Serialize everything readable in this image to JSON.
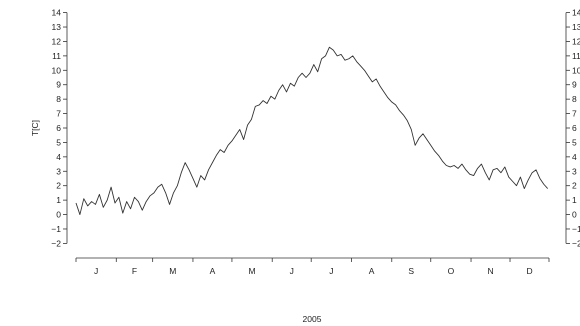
{
  "chart_data": {
    "type": "line",
    "title": "",
    "xlabel": "2005",
    "ylabel": "T[C]",
    "ylim": [
      -2,
      14
    ],
    "y_ticks": [
      -2,
      -1,
      0,
      1,
      2,
      3,
      4,
      5,
      6,
      7,
      8,
      9,
      10,
      11,
      12,
      13,
      14
    ],
    "x_tick_labels": [
      "J",
      "F",
      "M",
      "A",
      "M",
      "J",
      "J",
      "A",
      "S",
      "O",
      "N",
      "D"
    ],
    "grid": false,
    "series": [
      {
        "x": [
          1,
          4,
          7,
          10,
          13,
          16,
          19,
          22,
          25,
          28,
          31,
          34,
          37,
          40,
          43,
          46,
          49,
          52,
          55,
          58,
          61,
          64,
          67,
          70,
          73,
          76,
          79,
          82,
          85,
          88,
          91,
          94,
          97,
          100,
          103,
          106,
          109,
          112,
          115,
          118,
          121,
          124,
          127,
          130,
          133,
          136,
          139,
          142,
          145,
          148,
          151,
          154,
          157,
          160,
          163,
          166,
          169,
          172,
          175,
          178,
          181,
          184,
          187,
          190,
          193,
          196,
          199,
          202,
          205,
          208,
          211,
          214,
          217,
          220,
          223,
          226,
          229,
          232,
          235,
          238,
          241,
          244,
          247,
          250,
          253,
          256,
          259,
          262,
          265,
          268,
          271,
          274,
          277,
          280,
          283,
          286,
          289,
          292,
          295,
          298,
          301,
          304,
          307,
          310,
          313,
          316,
          319,
          322,
          325,
          328,
          331,
          334,
          337,
          340,
          343,
          346,
          349,
          352,
          355,
          358,
          361,
          364
        ],
        "y": [
          0.8,
          0.0,
          1.1,
          0.6,
          0.9,
          0.7,
          1.4,
          0.5,
          1.0,
          1.9,
          0.8,
          1.2,
          0.1,
          0.9,
          0.4,
          1.2,
          0.9,
          0.3,
          0.9,
          1.3,
          1.5,
          1.9,
          2.1,
          1.5,
          0.7,
          1.5,
          2.0,
          2.9,
          3.6,
          3.1,
          2.5,
          1.9,
          2.7,
          2.4,
          3.1,
          3.6,
          4.1,
          4.5,
          4.3,
          4.8,
          5.1,
          5.5,
          5.9,
          5.2,
          6.2,
          6.6,
          7.5,
          7.6,
          7.9,
          7.7,
          8.2,
          8.0,
          8.6,
          9.0,
          8.5,
          9.1,
          8.9,
          9.5,
          9.8,
          9.5,
          9.8,
          10.4,
          9.9,
          10.8,
          11.0,
          11.6,
          11.4,
          11.0,
          11.1,
          10.7,
          10.8,
          11.0,
          10.6,
          10.3,
          10.0,
          9.6,
          9.2,
          9.4,
          8.9,
          8.5,
          8.1,
          7.8,
          7.6,
          7.2,
          6.9,
          6.5,
          5.9,
          4.8,
          5.3,
          5.6,
          5.2,
          4.8,
          4.4,
          4.1,
          3.7,
          3.4,
          3.3,
          3.4,
          3.2,
          3.5,
          3.1,
          2.8,
          2.7,
          3.2,
          3.5,
          2.9,
          2.4,
          3.1,
          3.2,
          2.9,
          3.3,
          2.6,
          2.3,
          2.0,
          2.6,
          1.8,
          2.4,
          2.9,
          3.1,
          2.5,
          2.1,
          1.8
        ]
      }
    ]
  }
}
